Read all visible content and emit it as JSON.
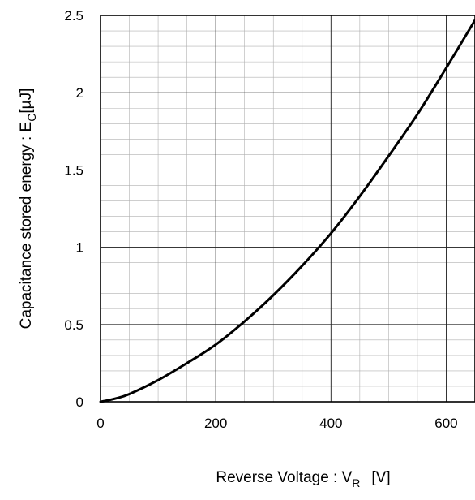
{
  "chart_data": {
    "type": "line",
    "title": "",
    "xlabel": {
      "main": "Reverse Voltage : V",
      "sub": "R",
      "unit": "[V]"
    },
    "ylabel": {
      "main": "Capacitance stored energy : E",
      "sub": "C",
      "unit": "[µJ]"
    },
    "xlim": [
      0,
      650
    ],
    "ylim": [
      0,
      2.5
    ],
    "xticks": [
      0,
      200,
      400,
      600
    ],
    "xtick_labels": [
      "0",
      "200",
      "400",
      "600"
    ],
    "yticks": [
      0,
      0.5,
      1,
      1.5,
      2,
      2.5
    ],
    "ytick_labels": [
      "0",
      "0.5",
      "1",
      "1.5",
      "2",
      "2.5"
    ],
    "grid": true,
    "minor_grid": {
      "x_step": 50,
      "y_step": 0.1
    },
    "series": [
      {
        "color": "#000000",
        "x": [
          0,
          25,
          50,
          100,
          150,
          200,
          250,
          300,
          350,
          400,
          450,
          500,
          550,
          600,
          650
        ],
        "y": [
          0,
          0.02,
          0.05,
          0.14,
          0.25,
          0.37,
          0.52,
          0.69,
          0.88,
          1.09,
          1.33,
          1.59,
          1.86,
          2.16,
          2.47
        ]
      }
    ]
  }
}
